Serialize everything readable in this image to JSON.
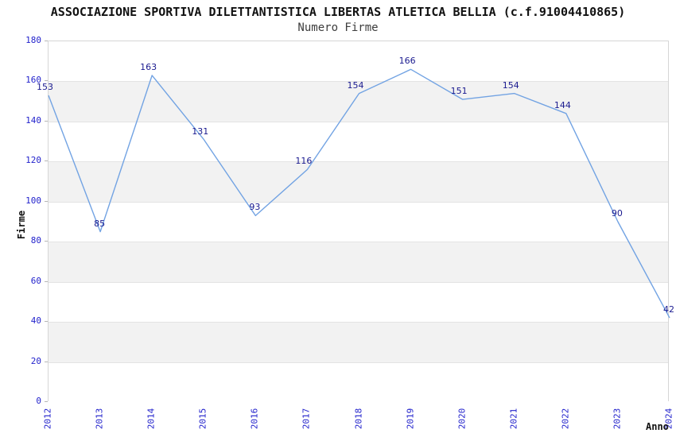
{
  "chart_data": {
    "type": "line",
    "title": "ASSOCIAZIONE SPORTIVA DILETTANTISTICA LIBERTAS ATLETICA BELLIA (c.f.91004410865)",
    "subtitle": "Numero Firme",
    "xlabel": "Anno",
    "ylabel": "Firme",
    "categories": [
      "2012",
      "2013",
      "2014",
      "2015",
      "2016",
      "2017",
      "2018",
      "2019",
      "2020",
      "2021",
      "2022",
      "2023",
      "2024"
    ],
    "values": [
      153,
      85,
      163,
      131,
      93,
      116,
      154,
      166,
      151,
      154,
      144,
      90,
      42
    ],
    "series_name": "Numero Firme",
    "ylim": [
      0,
      180
    ],
    "ytick_step": 20,
    "yticks": [
      0,
      20,
      40,
      60,
      80,
      100,
      120,
      140,
      160,
      180
    ],
    "legend": "none",
    "grid": "horizontal-alternating-bands",
    "point_labels_visible": true,
    "colors": {
      "line": "#72a3e3",
      "tick_label": "#2323cc",
      "value_label": "#1a1a8f",
      "band_gray": "#f2f2f2",
      "band_white": "#ffffff",
      "gridline": "#e3e3e3",
      "plot_border": "#d6d6d6",
      "title_text": "#111111"
    }
  }
}
